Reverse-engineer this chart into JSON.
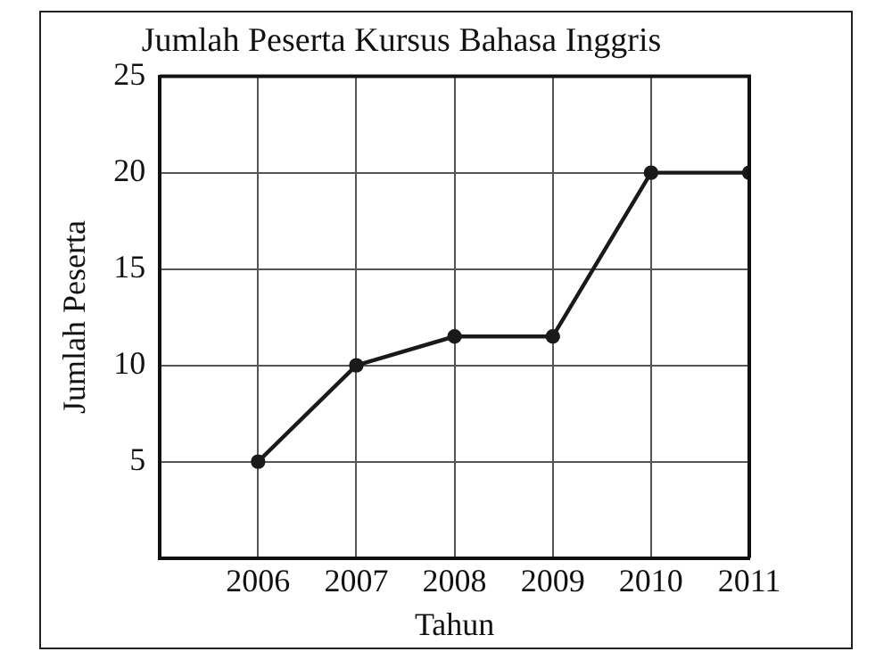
{
  "chart_data": {
    "type": "line",
    "title": "Jumlah Peserta Kursus Bahasa Inggris",
    "xlabel": "Tahun",
    "ylabel": "Jumlah Peserta",
    "x": [
      2006,
      2007,
      2008,
      2009,
      2010,
      2011
    ],
    "series": [
      {
        "color": "#1a1a1a",
        "values": [
          5,
          10,
          11.5,
          11.5,
          20,
          20
        ]
      }
    ],
    "xlim": [
      2005,
      2011
    ],
    "xticks": [
      2006,
      2007,
      2008,
      2009,
      2010,
      2011
    ],
    "ylim": [
      0,
      25
    ],
    "yticks": [
      5,
      10,
      15,
      20,
      25
    ],
    "grid": true,
    "legend": false,
    "marker": "circle",
    "line_style": "solid"
  }
}
